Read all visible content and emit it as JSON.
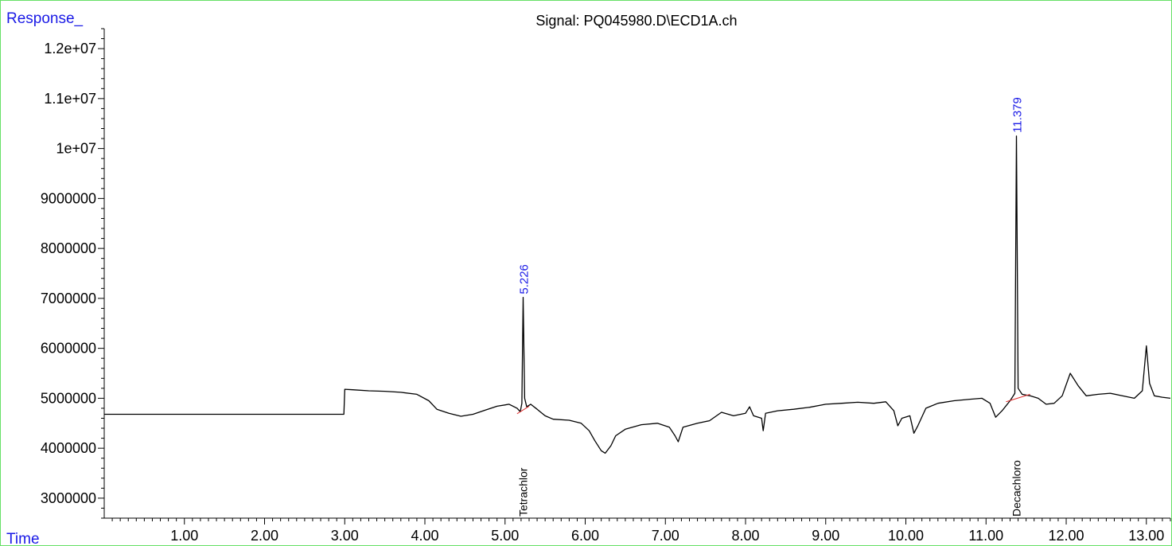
{
  "chart_data": {
    "type": "line",
    "title": "Signal: PQ045980.D\\ECD1A.ch",
    "ylabel": "Response_",
    "xlabel": "Time",
    "xlim": [
      0,
      13.3
    ],
    "ylim": [
      2600000,
      12400000
    ],
    "x_ticks": [
      {
        "v": 1,
        "label": "1.00"
      },
      {
        "v": 2,
        "label": "2.00"
      },
      {
        "v": 3,
        "label": "3.00"
      },
      {
        "v": 4,
        "label": "4.00"
      },
      {
        "v": 5,
        "label": "5.00"
      },
      {
        "v": 6,
        "label": "6.00"
      },
      {
        "v": 7,
        "label": "7.00"
      },
      {
        "v": 8,
        "label": "8.00"
      },
      {
        "v": 9,
        "label": "9.00"
      },
      {
        "v": 10,
        "label": "10.00"
      },
      {
        "v": 11,
        "label": "11.00"
      },
      {
        "v": 12,
        "label": "12.00"
      },
      {
        "v": 13,
        "label": "13.00"
      }
    ],
    "y_ticks": [
      {
        "v": 3000000,
        "label": "3000000"
      },
      {
        "v": 4000000,
        "label": "4000000"
      },
      {
        "v": 5000000,
        "label": "5000000"
      },
      {
        "v": 6000000,
        "label": "6000000"
      },
      {
        "v": 7000000,
        "label": "7000000"
      },
      {
        "v": 8000000,
        "label": "8000000"
      },
      {
        "v": 9000000,
        "label": "9000000"
      },
      {
        "v": 10000000,
        "label": "1e+07"
      },
      {
        "v": 11000000,
        "label": "1.1e+07"
      },
      {
        "v": 12000000,
        "label": "1.2e+07"
      }
    ],
    "series": [
      {
        "points": [
          [
            0,
            4680000
          ],
          [
            2.99,
            4680000
          ],
          [
            3.0,
            5180000
          ],
          [
            3.1,
            5170000
          ],
          [
            3.3,
            5150000
          ],
          [
            3.5,
            5140000
          ],
          [
            3.7,
            5120000
          ],
          [
            3.9,
            5080000
          ],
          [
            4.05,
            4950000
          ],
          [
            4.15,
            4780000
          ],
          [
            4.3,
            4700000
          ],
          [
            4.45,
            4640000
          ],
          [
            4.6,
            4680000
          ],
          [
            4.75,
            4760000
          ],
          [
            4.9,
            4840000
          ],
          [
            5.05,
            4880000
          ],
          [
            5.15,
            4800000
          ],
          [
            5.19,
            4730000
          ],
          [
            5.21,
            4900000
          ],
          [
            5.226,
            7020000
          ],
          [
            5.245,
            5000000
          ],
          [
            5.27,
            4830000
          ],
          [
            5.32,
            4880000
          ],
          [
            5.4,
            4780000
          ],
          [
            5.5,
            4650000
          ],
          [
            5.6,
            4580000
          ],
          [
            5.8,
            4560000
          ],
          [
            5.95,
            4500000
          ],
          [
            6.05,
            4350000
          ],
          [
            6.12,
            4150000
          ],
          [
            6.2,
            3950000
          ],
          [
            6.25,
            3900000
          ],
          [
            6.32,
            4050000
          ],
          [
            6.38,
            4250000
          ],
          [
            6.5,
            4380000
          ],
          [
            6.7,
            4470000
          ],
          [
            6.9,
            4500000
          ],
          [
            7.05,
            4420000
          ],
          [
            7.12,
            4250000
          ],
          [
            7.16,
            4130000
          ],
          [
            7.22,
            4420000
          ],
          [
            7.4,
            4500000
          ],
          [
            7.55,
            4550000
          ],
          [
            7.7,
            4720000
          ],
          [
            7.85,
            4650000
          ],
          [
            8.0,
            4700000
          ],
          [
            8.05,
            4830000
          ],
          [
            8.1,
            4650000
          ],
          [
            8.2,
            4600000
          ],
          [
            8.22,
            4350000
          ],
          [
            8.25,
            4700000
          ],
          [
            8.4,
            4750000
          ],
          [
            8.6,
            4780000
          ],
          [
            8.8,
            4820000
          ],
          [
            9.0,
            4880000
          ],
          [
            9.2,
            4900000
          ],
          [
            9.4,
            4920000
          ],
          [
            9.6,
            4900000
          ],
          [
            9.75,
            4930000
          ],
          [
            9.85,
            4750000
          ],
          [
            9.9,
            4450000
          ],
          [
            9.95,
            4600000
          ],
          [
            10.05,
            4650000
          ],
          [
            10.1,
            4300000
          ],
          [
            10.15,
            4450000
          ],
          [
            10.25,
            4800000
          ],
          [
            10.4,
            4900000
          ],
          [
            10.6,
            4950000
          ],
          [
            10.8,
            4980000
          ],
          [
            10.95,
            5000000
          ],
          [
            11.05,
            4900000
          ],
          [
            11.12,
            4620000
          ],
          [
            11.2,
            4750000
          ],
          [
            11.3,
            4950000
          ],
          [
            11.36,
            5100000
          ],
          [
            11.379,
            10250000
          ],
          [
            11.4,
            5200000
          ],
          [
            11.45,
            5080000
          ],
          [
            11.55,
            5050000
          ],
          [
            11.65,
            5000000
          ],
          [
            11.75,
            4880000
          ],
          [
            11.85,
            4900000
          ],
          [
            11.95,
            5050000
          ],
          [
            12.05,
            5500000
          ],
          [
            12.15,
            5250000
          ],
          [
            12.25,
            5050000
          ],
          [
            12.4,
            5080000
          ],
          [
            12.55,
            5100000
          ],
          [
            12.7,
            5050000
          ],
          [
            12.85,
            5000000
          ],
          [
            12.95,
            5150000
          ],
          [
            13.0,
            6050000
          ],
          [
            13.04,
            5300000
          ],
          [
            13.1,
            5050000
          ],
          [
            13.2,
            5020000
          ],
          [
            13.3,
            5000000
          ]
        ]
      }
    ],
    "baselines": [
      [
        [
          5.15,
          4690000
        ],
        [
          5.3,
          4840000
        ]
      ],
      [
        [
          11.25,
          4930000
        ],
        [
          11.55,
          5080000
        ]
      ]
    ],
    "peaks": [
      {
        "x": 5.226,
        "y": 7020000,
        "rt_label": "5.226",
        "compound": "Tetrachlor"
      },
      {
        "x": 11.379,
        "y": 10250000,
        "rt_label": "11.379",
        "compound": "Decachloro"
      }
    ],
    "colors": {
      "trace": "#000000",
      "baseline": "#e03030",
      "annotation": "#1a1ae6",
      "frame": "#66e066"
    }
  }
}
